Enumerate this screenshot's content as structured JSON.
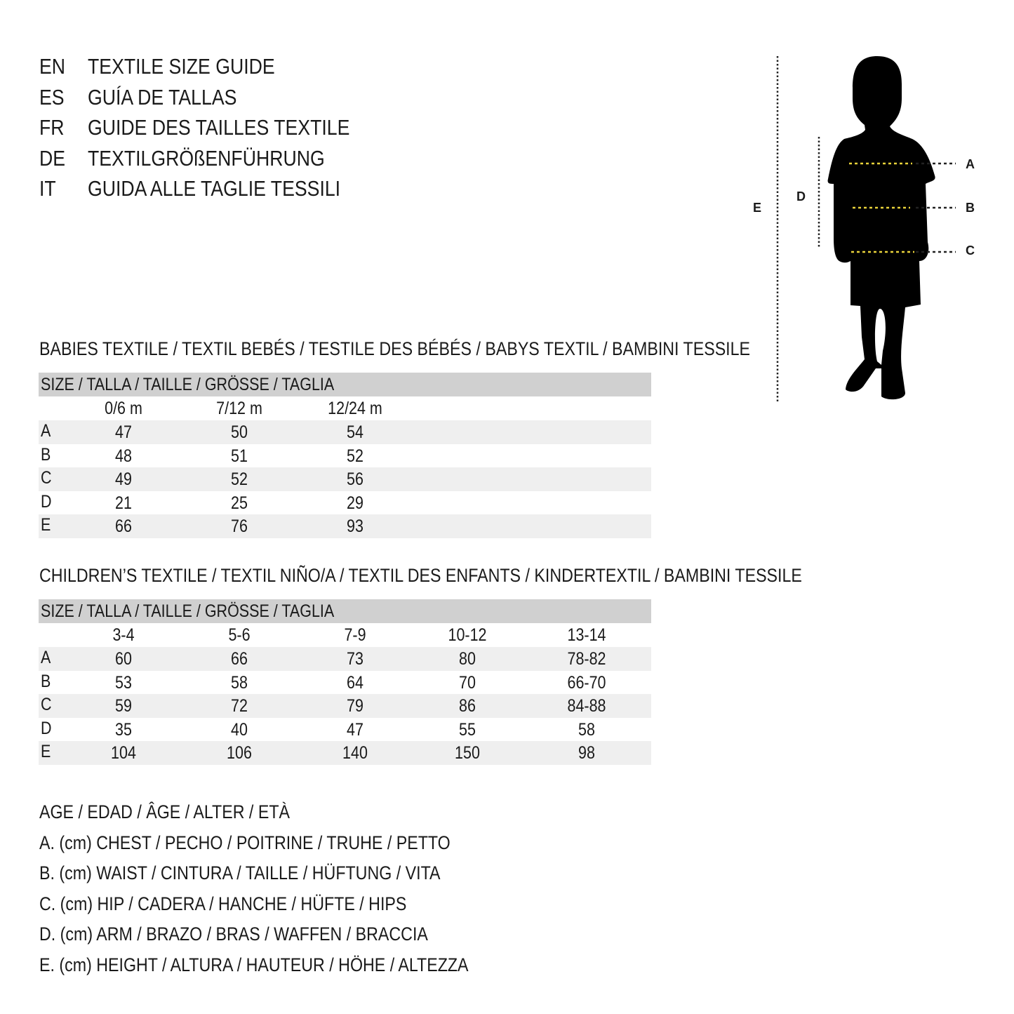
{
  "titles": [
    {
      "code": "EN",
      "text": "TEXTILE SIZE GUIDE"
    },
    {
      "code": "ES",
      "text": "GUÍA DE TALLAS"
    },
    {
      "code": "FR",
      "text": "GUIDE DES TAILLES TEXTILE"
    },
    {
      "code": "DE",
      "text": "TEXTILGRÖßENFÜHRUNG"
    },
    {
      "code": "IT",
      "text": "GUIDA ALLE TAGLIE TESSILI"
    }
  ],
  "babies": {
    "heading": "BABIES TEXTILE / TEXTIL BEBÉS / TESTILE DES BÉBÉS / BABYS TEXTIL / BAMBINI TESSILE",
    "size_header": "SIZE / TALLA / TAILLE / GRÖSSE / TAGLIA",
    "columns": [
      "0/6 m",
      "7/12 m",
      "12/24 m"
    ],
    "rows": [
      {
        "label": "A",
        "values": [
          "47",
          "50",
          "54"
        ]
      },
      {
        "label": "B",
        "values": [
          "48",
          "51",
          "52"
        ]
      },
      {
        "label": "C",
        "values": [
          "49",
          "52",
          "56"
        ]
      },
      {
        "label": "D",
        "values": [
          "21",
          "25",
          "29"
        ]
      },
      {
        "label": "E",
        "values": [
          "66",
          "76",
          "93"
        ]
      }
    ]
  },
  "children": {
    "heading": "CHILDREN’S TEXTILE / TEXTIL NIÑO/A / TEXTIL DES ENFANTS / KINDERTEXTIL / BAMBINI TESSILE",
    "size_header": "SIZE / TALLA / TAILLE / GRÖSSE / TAGLIA",
    "columns": [
      "3-4",
      "5-6",
      "7-9",
      "10-12",
      "13-14"
    ],
    "rows": [
      {
        "label": "A",
        "values": [
          "60",
          "66",
          "73",
          "80",
          "78-82"
        ]
      },
      {
        "label": "B",
        "values": [
          "53",
          "58",
          "64",
          "70",
          "66-70"
        ]
      },
      {
        "label": "C",
        "values": [
          "59",
          "72",
          "79",
          "86",
          "84-88"
        ]
      },
      {
        "label": "D",
        "values": [
          "35",
          "40",
          "47",
          "55",
          "58"
        ]
      },
      {
        "label": "E",
        "values": [
          "104",
          "106",
          "140",
          "150",
          "98"
        ]
      }
    ]
  },
  "legend": [
    "AGE / EDAD / ÂGE / ALTER / ETÀ",
    "A. (cm) CHEST / PECHO / POITRINE / TRUHE / PETTO",
    "B. (cm) WAIST / CINTURA / TAILLE / HÜFTUNG / VITA",
    "C. (cm) HIP / CADERA / HANCHE / HÜFTE / HIPS",
    "D. (cm) ARM / BRAZO / BRAS / WAFFEN / BRACCIA",
    "E. (cm) HEIGHT / ALTURA / HAUTEUR / HÖHE / ALTEZZA"
  ],
  "figure": {
    "labels": {
      "A": "A",
      "B": "B",
      "C": "C",
      "D": "D",
      "E": "E"
    },
    "marker_color": "#e8d23a"
  },
  "colors": {
    "header_bar": "#d0d0d0",
    "stripe": "#efefef",
    "text": "#1a1a1a"
  }
}
